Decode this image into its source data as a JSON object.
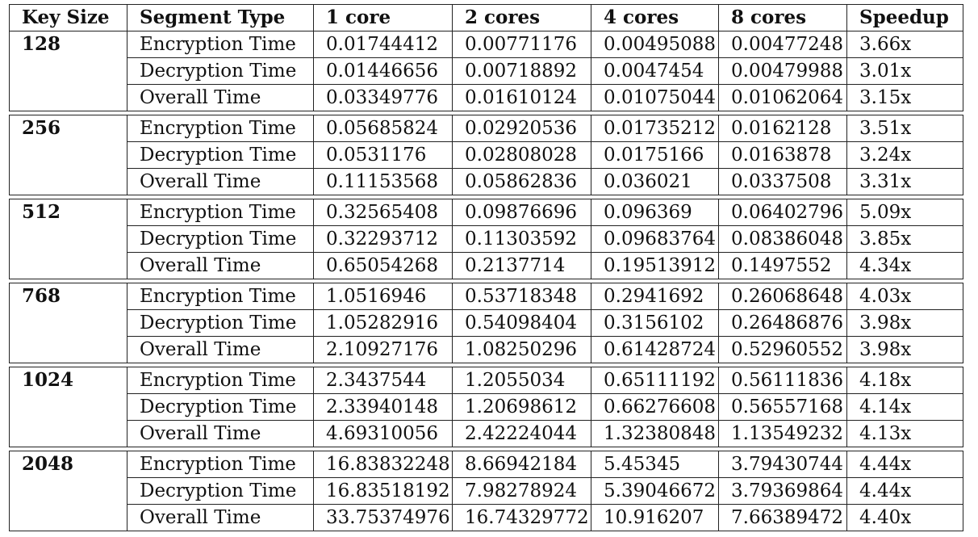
{
  "table": {
    "headers": [
      "Key Size",
      "Segment Type",
      "1 core",
      "2 cores",
      "4 cores",
      "8 cores",
      "Speedup"
    ],
    "groups": [
      {
        "key": "128",
        "rows": [
          [
            "Encryption Time",
            "0.01744412",
            "0.00771176",
            "0.00495088",
            "0.00477248",
            "3.66x"
          ],
          [
            "Decryption Time",
            "0.01446656",
            "0.00718892",
            "0.0047454",
            "0.00479988",
            "3.01x"
          ],
          [
            "Overall Time",
            "0.03349776",
            "0.01610124",
            "0.01075044",
            "0.01062064",
            "3.15x"
          ]
        ]
      },
      {
        "key": "256",
        "rows": [
          [
            "Encryption Time",
            "0.05685824",
            "0.02920536",
            "0.01735212",
            "0.0162128",
            "3.51x"
          ],
          [
            "Decryption Time",
            "0.0531176",
            "0.02808028",
            "0.0175166",
            "0.0163878",
            "3.24x"
          ],
          [
            "Overall Time",
            "0.11153568",
            "0.05862836",
            "0.036021",
            "0.0337508",
            "3.31x"
          ]
        ]
      },
      {
        "key": "512",
        "rows": [
          [
            "Encryption Time",
            "0.32565408",
            "0.09876696",
            "0.096369",
            "0.06402796",
            "5.09x"
          ],
          [
            "Decryption Time",
            "0.32293712",
            "0.11303592",
            "0.09683764",
            "0.08386048",
            "3.85x"
          ],
          [
            "Overall Time",
            "0.65054268",
            "0.2137714",
            "0.19513912",
            "0.1497552",
            "4.34x"
          ]
        ]
      },
      {
        "key": "768",
        "rows": [
          [
            "Encryption Time",
            "1.0516946",
            "0.53718348",
            "0.2941692",
            "0.26068648",
            "4.03x"
          ],
          [
            "Decryption Time",
            "1.05282916",
            "0.54098404",
            "0.3156102",
            "0.26486876",
            "3.98x"
          ],
          [
            "Overall Time",
            "2.10927176",
            "1.08250296",
            "0.61428724",
            "0.52960552",
            "3.98x"
          ]
        ]
      },
      {
        "key": "1024",
        "rows": [
          [
            "Encryption Time",
            "2.3437544",
            "1.2055034",
            "0.65111192",
            "0.56111836",
            "4.18x"
          ],
          [
            "Decryption Time",
            "2.33940148",
            "1.20698612",
            "0.66276608",
            "0.56557168",
            "4.14x"
          ],
          [
            "Overall Time",
            "4.69310056",
            "2.42224044",
            "1.32380848",
            "1.13549232",
            "4.13x"
          ]
        ]
      },
      {
        "key": "2048",
        "rows": [
          [
            "Encryption Time",
            "16.83832248",
            "8.66942184",
            "5.45345",
            "3.79430744",
            "4.44x"
          ],
          [
            "Decryption Time",
            "16.83518192",
            "7.98278924",
            "5.39046672",
            "3.79369864",
            "4.44x"
          ],
          [
            "Overall Time",
            "33.75374976",
            "16.74329772",
            "10.916207",
            "7.66389472",
            "4.40x"
          ]
        ]
      }
    ]
  }
}
